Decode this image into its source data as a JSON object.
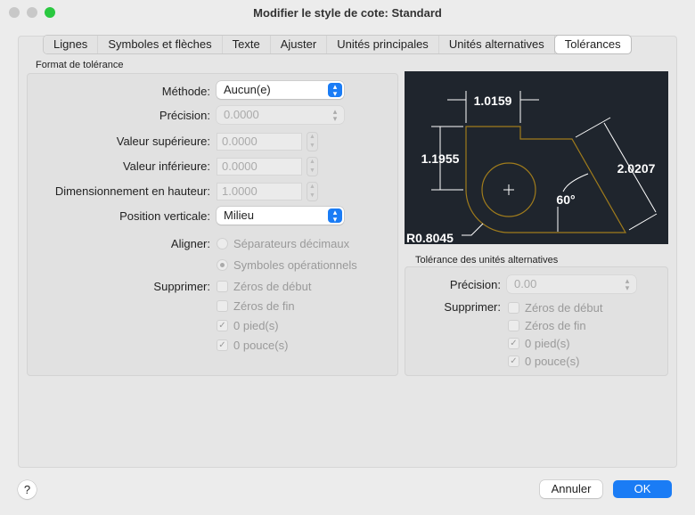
{
  "window": {
    "title": "Modifier le style de cote: Standard"
  },
  "tabs": [
    {
      "label": "Lignes"
    },
    {
      "label": "Symboles et flèches"
    },
    {
      "label": "Texte"
    },
    {
      "label": "Ajuster"
    },
    {
      "label": "Unités principales"
    },
    {
      "label": "Unités alternatives"
    },
    {
      "label": "Tolérances",
      "active": true
    }
  ],
  "format": {
    "title": "Format de tolérance",
    "methode": {
      "label": "Méthode:",
      "value": "Aucun(e)"
    },
    "precision": {
      "label": "Précision:",
      "value": "0.0000"
    },
    "sup": {
      "label": "Valeur supérieure:",
      "value": "0.0000"
    },
    "inf": {
      "label": "Valeur inférieure:",
      "value": "0.0000"
    },
    "hauteur": {
      "label": "Dimensionnement en hauteur:",
      "value": "1.0000"
    },
    "position": {
      "label": "Position verticale:",
      "value": "Milieu"
    },
    "aligner": {
      "label": "Aligner:",
      "options": [
        {
          "label": "Séparateurs décimaux",
          "selected": false
        },
        {
          "label": "Symboles opérationnels",
          "selected": true
        }
      ]
    },
    "supprimer": {
      "label": "Supprimer:",
      "options": [
        {
          "label": "Zéros de début",
          "checked": false
        },
        {
          "label": "Zéros de fin",
          "checked": false
        },
        {
          "label": "0 pied(s)",
          "checked": true
        },
        {
          "label": "0 pouce(s)",
          "checked": true
        }
      ]
    }
  },
  "preview": {
    "dim_top": "1.0159",
    "dim_left": "1.1955",
    "dim_right": "2.0207",
    "angle": "60°",
    "radius": "R0.8045",
    "colors": {
      "bg": "#1f252d",
      "shape": "#a07c1c",
      "dim": "#ffffff"
    }
  },
  "alt": {
    "title": "Tolérance des unités alternatives",
    "precision": {
      "label": "Précision:",
      "value": "0.00"
    },
    "supprimer": {
      "label": "Supprimer:",
      "options": [
        {
          "label": "Zéros de début",
          "checked": false
        },
        {
          "label": "Zéros de fin",
          "checked": false
        },
        {
          "label": "0 pied(s)",
          "checked": true
        },
        {
          "label": "0 pouce(s)",
          "checked": true
        }
      ]
    }
  },
  "footer": {
    "help": "?",
    "cancel": "Annuler",
    "ok": "OK"
  },
  "colors": {
    "accent": "#1a7cf5"
  }
}
